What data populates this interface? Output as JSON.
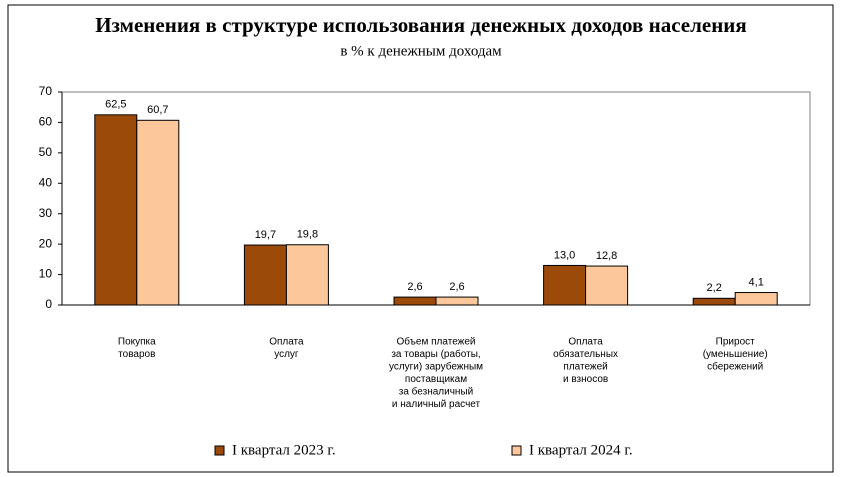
{
  "chart_data": {
    "type": "bar",
    "title": "Изменения в структуре использования денежных доходов населения",
    "subtitle": "в % к денежным доходам",
    "categories": [
      [
        "Покупка",
        "товаров"
      ],
      [
        "Оплата",
        "услуг"
      ],
      [
        "Объем платежей",
        "за товары (работы,",
        "услуги) зарубежным",
        "поставщикам",
        "за безналичный",
        "и наличный расчет"
      ],
      [
        "Оплата",
        "обязательных",
        "платежей",
        "и взносов"
      ],
      [
        "Прирост",
        "(уменьшение)",
        "сбережений"
      ]
    ],
    "series": [
      {
        "name": "I квартал 2023 г.",
        "color": "#9c4a0a",
        "values": [
          62.5,
          19.7,
          2.6,
          13.0,
          2.2
        ],
        "value_labels": [
          "62,5",
          "19,7",
          "2,6",
          "13,0",
          "2,2"
        ]
      },
      {
        "name": "I квартал 2024 г.",
        "color": "#fcc89b",
        "values": [
          60.7,
          19.8,
          2.6,
          12.8,
          4.1
        ],
        "value_labels": [
          "60,7",
          "19,8",
          "2,6",
          "12,8",
          "4,1"
        ]
      }
    ],
    "ylim": [
      0,
      70
    ],
    "yticks": [
      0,
      10,
      20,
      30,
      40,
      50,
      60,
      70
    ],
    "grid": false
  }
}
